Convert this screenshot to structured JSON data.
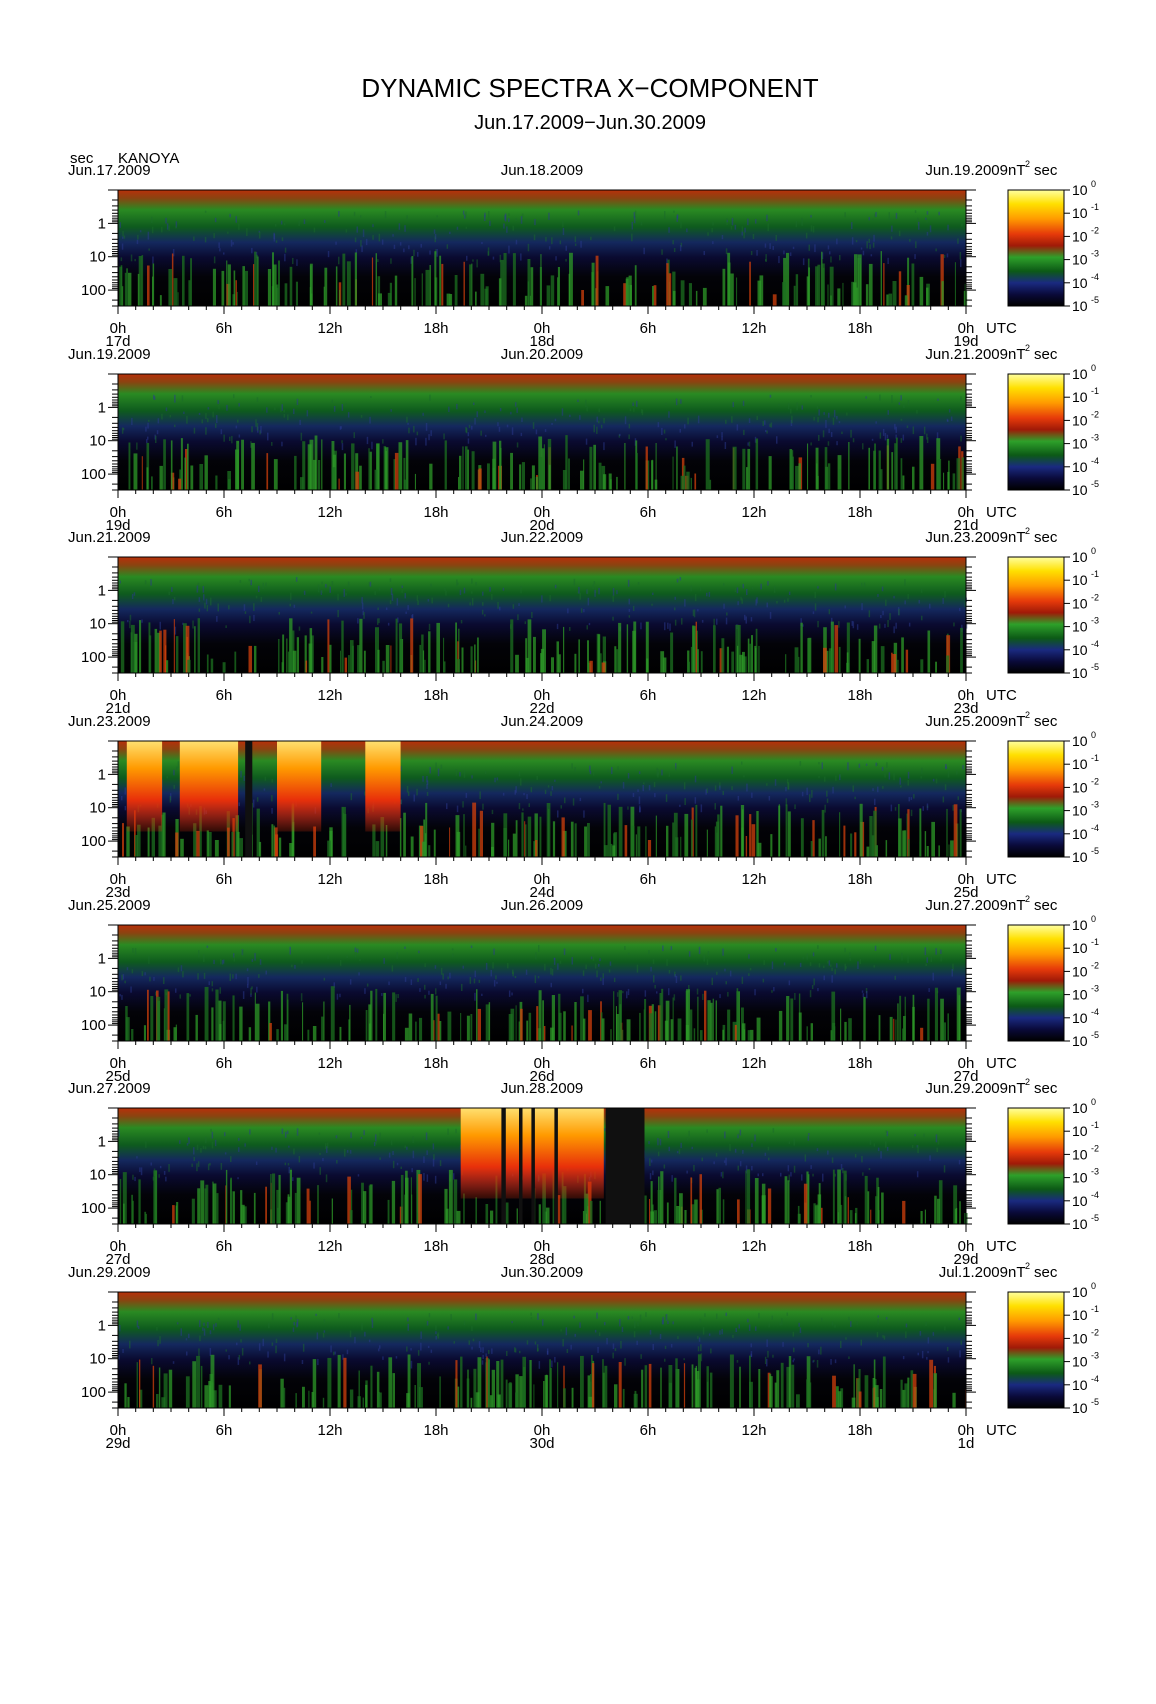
{
  "chart_data": {
    "type": "heatmap",
    "title": "DYNAMIC SPECTRA X−COMPONENT",
    "subtitle": "Jun.17.2009−Jun.30.2009",
    "ylabel": "sec",
    "station": "KANOYA",
    "y_ticks": [
      "1",
      "10",
      "100"
    ],
    "y_scale": "log",
    "ylim": [
      0.1,
      300
    ],
    "x_tick_labels": [
      "0h",
      "6h",
      "12h",
      "18h",
      "0h",
      "6h",
      "12h",
      "18h",
      "0h"
    ],
    "x_unit": "UTC",
    "colorbar": {
      "unit_prefix": "nT",
      "unit_sup": "2",
      "unit_suffix": "sec",
      "tick_base": "10",
      "tick_exps": [
        "0",
        "-1",
        "-2",
        "-3",
        "-4",
        "-5"
      ],
      "range_log10": [
        -5,
        0
      ],
      "colors": [
        "#000000",
        "#0a0a3a",
        "#1a2a7a",
        "#0c6a1a",
        "#22a02a",
        "#cc2a0a",
        "#ff5a00",
        "#ffa000",
        "#ffe000",
        "#ffff80"
      ]
    },
    "panels": [
      {
        "left_date": "Jun.17.2009",
        "mid_date": "Jun.18.2009",
        "right_date": "Jun.19.2009",
        "day_labels": [
          "17d",
          "18d",
          "19d"
        ],
        "events": []
      },
      {
        "left_date": "Jun.19.2009",
        "mid_date": "Jun.20.2009",
        "right_date": "Jun.21.2009",
        "day_labels": [
          "19d",
          "20d",
          "21d"
        ],
        "events": []
      },
      {
        "left_date": "Jun.21.2009",
        "mid_date": "Jun.22.2009",
        "right_date": "Jun.23.2009",
        "day_labels": [
          "21d",
          "22d",
          "23d"
        ],
        "events": []
      },
      {
        "left_date": "Jun.23.2009",
        "mid_date": "Jun.24.2009",
        "right_date": "Jun.25.2009",
        "day_labels": [
          "23d",
          "24d",
          "25d"
        ],
        "events": [
          [
            0.5,
            2.5
          ],
          [
            3.5,
            6.8
          ],
          [
            9.0,
            11.5
          ],
          [
            14.0,
            16.0
          ]
        ],
        "gaps": [
          [
            7.2,
            7.6
          ]
        ]
      },
      {
        "left_date": "Jun.25.2009",
        "mid_date": "Jun.26.2009",
        "right_date": "Jun.27.2009",
        "day_labels": [
          "25d",
          "26d",
          "27d"
        ],
        "events": []
      },
      {
        "left_date": "Jun.27.2009",
        "mid_date": "Jun.28.2009",
        "right_date": "Jun.29.2009",
        "day_labels": [
          "27d",
          "28d",
          "29d"
        ],
        "events": [
          [
            19.4,
            27.5
          ]
        ],
        "gaps": [
          [
            21.7,
            21.95
          ],
          [
            22.7,
            22.9
          ],
          [
            23.4,
            23.6
          ],
          [
            24.7,
            24.9
          ],
          [
            27.6,
            29.8
          ]
        ]
      },
      {
        "left_date": "Jun.29.2009",
        "mid_date": "Jun.30.2009",
        "right_date": "Jul.1.2009",
        "day_labels": [
          "29d",
          "30d",
          "1d"
        ],
        "events": []
      }
    ]
  }
}
